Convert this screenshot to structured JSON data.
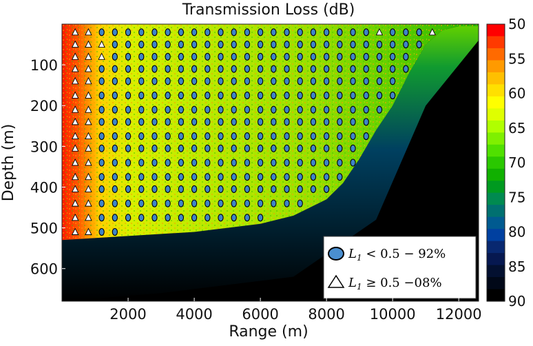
{
  "chart_data": {
    "type": "heatmap",
    "title": "Transmission Loss (dB)",
    "xlabel": "Range (m)",
    "ylabel": "Depth (m)",
    "xlim": [
      0,
      12600
    ],
    "ylim": [
      680,
      0
    ],
    "x_ticks": [
      2000,
      4000,
      6000,
      8000,
      10000,
      12000
    ],
    "y_ticks": [
      100,
      200,
      300,
      400,
      500,
      600
    ],
    "colorbar": {
      "ticks": [
        50,
        55,
        60,
        65,
        70,
        75,
        80,
        85,
        90
      ],
      "range": [
        50,
        90
      ],
      "colors": [
        "#ff0000",
        "#ff3a00",
        "#ff6a00",
        "#ff9a00",
        "#ffc000",
        "#ffe000",
        "#ffff00",
        "#dfff00",
        "#b0ff00",
        "#7ff000",
        "#50e000",
        "#2ac800",
        "#10b000",
        "#009a20",
        "#008a50",
        "#007070",
        "#005a90",
        "#0040a0",
        "#082870",
        "#061850",
        "#031030",
        "#010818",
        "#000000"
      ]
    },
    "legend": {
      "position": "bottom-right",
      "entries": [
        {
          "marker": "circle",
          "label": "L1 < 0.5  − 92%",
          "color": "#4a8fd0",
          "base": "L",
          "sub": "1",
          "rest": " < 0.5  − 92%"
        },
        {
          "marker": "triangle",
          "label": "L1 ≥ 0.5  −08%",
          "color": "#ffffff",
          "base": "L",
          "sub": "1",
          "rest": " ≥ 0.5  −08%"
        }
      ]
    },
    "bottom_depth_profile": {
      "x": [
        0,
        2000,
        4000,
        6000,
        7000,
        8000,
        8500,
        9000,
        9500,
        10000,
        10500,
        11000,
        11500,
        12000,
        12600
      ],
      "depth": [
        530,
        520,
        510,
        490,
        470,
        430,
        390,
        330,
        260,
        200,
        120,
        50,
        15,
        5,
        5
      ]
    },
    "marker_grid": {
      "x_start": 400,
      "x_step": 400,
      "x_end": 11200,
      "depths": [
        20,
        50,
        80,
        110,
        140,
        175,
        210,
        240,
        275,
        305,
        340,
        375,
        405,
        440,
        475,
        510
      ],
      "triangle_columns_x": [
        400,
        800
      ],
      "triangle_extra": [
        [
          1200,
          50
        ],
        [
          1200,
          80
        ],
        [
          9600,
          205
        ],
        [
          9600,
          255
        ],
        [
          10000,
          125
        ],
        [
          11200,
          20
        ],
        [
          9600,
          20
        ]
      ]
    }
  }
}
